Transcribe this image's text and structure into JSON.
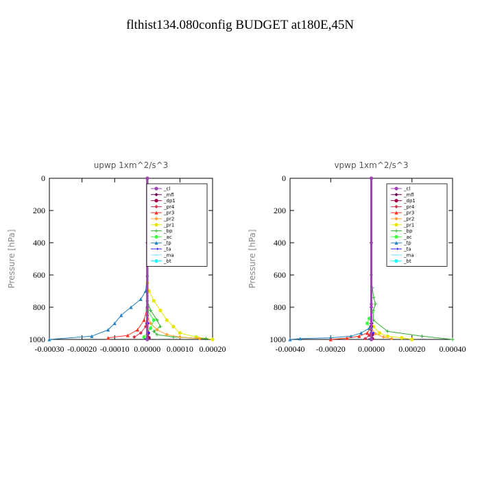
{
  "figure_title": "flthist134.080config  BUDGET at180E,45N",
  "legend_terms": [
    "_cl",
    "_mfl",
    "_dp1",
    "_pr4",
    "_pr3",
    "_pr2",
    "_pr1",
    "_bp",
    "_ac",
    "_tp",
    "_ta",
    "_ma",
    "_bt"
  ],
  "colors": {
    "_cl": "#9a45b0",
    "_mfl": "#6b0050",
    "_dp1": "#a0004a",
    "_pr4": "#d8304a",
    "_pr3": "#ff3020",
    "_pr2": "#ffa030",
    "_pr1": "#e6e600",
    "_bp": "#30b030",
    "_ac": "#40ff40",
    "_tp": "#2080c0",
    "_ta": "#2020ff",
    "_ma": "#80e0ff",
    "_bt": "#20ffff"
  },
  "chart_data": [
    {
      "type": "line",
      "title": "upwp   1xm^2/s^3",
      "ylabel": "Pressure [hPa]",
      "xlim": [
        -0.0003,
        0.0002
      ],
      "ylim": [
        1000,
        0
      ],
      "xticks": [
        -0.0003,
        -0.0002,
        -0.0001,
        0.0,
        0.0001,
        0.0002
      ],
      "xtick_labels": [
        "-0.00030",
        "-0.00020",
        "-0.00010",
        "0.00000",
        "0.00010",
        "0.00020"
      ],
      "yticks": [
        0,
        200,
        400,
        600,
        800,
        1000
      ],
      "ytick_labels": [
        "0",
        "200",
        "400",
        "600",
        "800",
        "1000"
      ],
      "legend_position": "top-right",
      "series": [
        {
          "name": "_tp",
          "x": [
            0,
            -5e-06,
            -2e-05,
            -5e-05,
            -8e-05,
            -0.0001,
            -0.00012,
            -0.00017,
            -0.0003
          ],
          "y": [
            600,
            700,
            750,
            800,
            850,
            900,
            940,
            980,
            1000
          ]
        },
        {
          "name": "_pr1",
          "x": [
            0,
            5e-06,
            2e-05,
            4e-05,
            6e-05,
            8e-05,
            0.0001,
            0.00015,
            0.0002
          ],
          "y": [
            650,
            700,
            760,
            820,
            880,
            920,
            960,
            985,
            1000
          ]
        },
        {
          "name": "_bp",
          "x": [
            0,
            1e-05,
            3e-05,
            4e-05,
            2e-05,
            3e-05,
            8e-05,
            0.00018
          ],
          "y": [
            760,
            820,
            880,
            920,
            950,
            970,
            985,
            995
          ]
        },
        {
          "name": "_pr2",
          "x": [
            0,
            1e-05,
            3e-05,
            6e-05,
            0.0001,
            0.00016
          ],
          "y": [
            850,
            900,
            940,
            970,
            985,
            995
          ]
        },
        {
          "name": "_pr3",
          "x": [
            0,
            -1e-05,
            -3e-05,
            -6e-05,
            -0.00012
          ],
          "y": [
            800,
            880,
            940,
            975,
            990
          ]
        },
        {
          "name": "_pr4",
          "x": [
            0,
            -5e-06,
            -2e-05,
            -4e-05
          ],
          "y": [
            850,
            920,
            960,
            985
          ]
        },
        {
          "name": "_ac",
          "x": [
            0,
            2e-05,
            1e-05,
            -1e-05
          ],
          "y": [
            820,
            880,
            930,
            985
          ]
        },
        {
          "name": "_dp1",
          "x": [
            0,
            3e-06,
            5e-06
          ],
          "y": [
            900,
            960,
            990
          ]
        },
        {
          "name": "_ta",
          "x": [
            0,
            2e-06,
            -3e-06
          ],
          "y": [
            900,
            960,
            995
          ]
        },
        {
          "name": "_mfl",
          "x": [
            0,
            0,
            0,
            0
          ],
          "y": [
            0,
            400,
            800,
            1000
          ]
        },
        {
          "name": "_cl",
          "x": [
            0,
            0
          ],
          "y": [
            0,
            1000
          ]
        }
      ]
    },
    {
      "type": "line",
      "title": "vpwp   1xm^2/s^3",
      "ylabel": "Pressure [hPa]",
      "xlim": [
        -0.0004,
        0.0004
      ],
      "ylim": [
        1000,
        0
      ],
      "xticks": [
        -0.0004,
        -0.0002,
        0.0,
        0.0002,
        0.0004
      ],
      "xtick_labels": [
        "-0.00040",
        "-0.00020",
        "0.00000",
        "0.00020",
        "0.00040"
      ],
      "yticks": [
        0,
        200,
        400,
        600,
        800,
        1000
      ],
      "ytick_labels": [
        "0",
        "200",
        "400",
        "600",
        "800",
        "1000"
      ],
      "legend_position": "top-right",
      "series": [
        {
          "name": "_tp",
          "x": [
            0,
            -1e-05,
            -5e-05,
            -0.0001,
            -0.0002,
            -0.00035,
            -0.0004
          ],
          "y": [
            900,
            930,
            960,
            980,
            990,
            995,
            1000
          ]
        },
        {
          "name": "_bp",
          "x": [
            0,
            5e-06,
            1.2e-05,
            2e-05,
            1e-05,
            1e-05,
            8e-05,
            0.00025,
            0.0004
          ],
          "y": [
            600,
            680,
            740,
            780,
            820,
            880,
            950,
            980,
            1000
          ]
        },
        {
          "name": "_pr1",
          "x": [
            0,
            1e-05,
            4e-05,
            8e-05,
            0.00015,
            0.0002
          ],
          "y": [
            880,
            920,
            960,
            980,
            990,
            1000
          ]
        },
        {
          "name": "_ac",
          "x": [
            0,
            5e-06,
            -1e-05,
            -2e-05,
            0.0
          ],
          "y": [
            780,
            830,
            870,
            900,
            940
          ]
        },
        {
          "name": "_pr3",
          "x": [
            0,
            -2e-05,
            -6e-05,
            -0.00012,
            -0.0002
          ],
          "y": [
            920,
            960,
            980,
            992,
            1000
          ]
        },
        {
          "name": "_pr4",
          "x": [
            0,
            -1e-05,
            -3e-05
          ],
          "y": [
            940,
            975,
            995
          ]
        },
        {
          "name": "_pr2",
          "x": [
            0,
            2e-05,
            6e-05,
            0.0001
          ],
          "y": [
            930,
            965,
            985,
            995
          ]
        },
        {
          "name": "_dp1",
          "x": [
            0,
            5e-06,
            5e-06
          ],
          "y": [
            920,
            970,
            995
          ]
        },
        {
          "name": "_ta",
          "x": [
            0,
            5e-06,
            -5e-06
          ],
          "y": [
            900,
            960,
            995
          ]
        },
        {
          "name": "_mfl",
          "x": [
            0,
            0,
            0,
            0
          ],
          "y": [
            0,
            400,
            800,
            1000
          ]
        },
        {
          "name": "_cl",
          "x": [
            0,
            0
          ],
          "y": [
            0,
            1000
          ]
        }
      ]
    }
  ]
}
